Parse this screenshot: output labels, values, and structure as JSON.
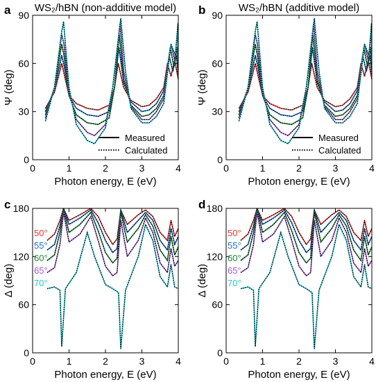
{
  "chart_data": [
    {
      "panel": "a",
      "type": "line",
      "title": "WS₂/hBN (non-additive model)",
      "xlabel": "Photon energy, E (eV)",
      "ylabel": "Ψ (deg)",
      "xlim": [
        0,
        4
      ],
      "ylim": [
        0,
        90
      ],
      "xticks": [
        0,
        1,
        2,
        3,
        4
      ],
      "yticks": [
        0,
        30,
        60,
        90
      ],
      "legend": {
        "placement": "bottom-right",
        "entries": [
          "Measured",
          "Calculated"
        ]
      },
      "series": [
        {
          "name": "50°",
          "color": "#e8352e",
          "x": [
            0.35,
            0.6,
            0.8,
            0.88,
            1.0,
            1.2,
            1.5,
            1.8,
            2.1,
            2.25,
            2.35,
            2.5,
            2.7,
            3.0,
            3.2,
            3.4,
            3.6,
            3.7,
            3.8,
            3.9,
            4.0
          ],
          "y": [
            32,
            42,
            60,
            52,
            40,
            35,
            32,
            31,
            34,
            45,
            60,
            45,
            37,
            33,
            34,
            38,
            45,
            60,
            52,
            62,
            50
          ]
        },
        {
          "name": "55°",
          "color": "#1f6fd1",
          "x": [
            0.35,
            0.6,
            0.8,
            0.87,
            1.0,
            1.2,
            1.5,
            1.8,
            2.1,
            2.25,
            2.37,
            2.5,
            2.7,
            3.0,
            3.2,
            3.4,
            3.6,
            3.75,
            3.85,
            3.95,
            4.0
          ],
          "y": [
            30,
            44,
            65,
            58,
            40,
            32,
            28,
            27,
            30,
            45,
            70,
            48,
            36,
            30,
            31,
            35,
            43,
            65,
            55,
            65,
            52
          ]
        },
        {
          "name": "60°",
          "color": "#1f8a3a",
          "x": [
            0.35,
            0.6,
            0.8,
            0.86,
            1.0,
            1.2,
            1.5,
            1.8,
            2.1,
            2.25,
            2.38,
            2.5,
            2.7,
            3.0,
            3.2,
            3.4,
            3.6,
            3.78,
            3.88,
            3.97,
            4.0
          ],
          "y": [
            28,
            45,
            72,
            65,
            40,
            28,
            23,
            22,
            26,
            45,
            78,
            50,
            34,
            27,
            28,
            32,
            40,
            70,
            58,
            70,
            55
          ]
        },
        {
          "name": "65°",
          "color": "#a05ad8",
          "x": [
            0.35,
            0.6,
            0.8,
            0.86,
            1.0,
            1.2,
            1.5,
            1.7,
            2.0,
            2.2,
            2.4,
            2.5,
            2.7,
            3.0,
            3.2,
            3.4,
            3.6,
            3.8,
            3.9,
            3.98,
            4.0
          ],
          "y": [
            26,
            45,
            78,
            72,
            42,
            25,
            17,
            15,
            22,
            45,
            85,
            55,
            33,
            25,
            25,
            30,
            38,
            72,
            62,
            80,
            60
          ]
        },
        {
          "name": "70°",
          "color": "#22c6cf",
          "x": [
            0.35,
            0.6,
            0.8,
            0.85,
            1.0,
            1.2,
            1.5,
            1.7,
            2.0,
            2.2,
            2.42,
            2.55,
            2.7,
            3.0,
            3.2,
            3.4,
            3.6,
            3.8,
            3.92,
            3.99,
            4.0
          ],
          "y": [
            24,
            45,
            80,
            86,
            45,
            22,
            12,
            10,
            20,
            45,
            88,
            55,
            32,
            23,
            23,
            27,
            35,
            72,
            65,
            85,
            62
          ]
        }
      ]
    },
    {
      "panel": "b",
      "type": "line",
      "title": "WS₂/hBN (additive model)",
      "xlabel": "Photon energy, E (eV)",
      "ylabel": "Ψ (deg)",
      "xlim": [
        0,
        4
      ],
      "ylim": [
        0,
        90
      ],
      "xticks": [
        0,
        1,
        2,
        3,
        4
      ],
      "yticks": [
        0,
        30,
        60,
        90
      ],
      "legend": {
        "placement": "bottom-right",
        "entries": [
          "Measured",
          "Calculated"
        ]
      },
      "series": [
        {
          "name": "50°",
          "color": "#e8352e",
          "x": [
            0.35,
            0.6,
            0.8,
            0.88,
            1.0,
            1.2,
            1.5,
            1.8,
            2.1,
            2.25,
            2.35,
            2.5,
            2.7,
            3.0,
            3.2,
            3.4,
            3.6,
            3.7,
            3.8,
            3.9,
            4.0
          ],
          "y": [
            32,
            42,
            60,
            52,
            40,
            35,
            32,
            31,
            34,
            45,
            60,
            45,
            37,
            33,
            34,
            38,
            45,
            60,
            52,
            62,
            50
          ]
        },
        {
          "name": "55°",
          "color": "#1f6fd1",
          "x": [
            0.35,
            0.6,
            0.8,
            0.87,
            1.0,
            1.2,
            1.5,
            1.8,
            2.1,
            2.25,
            2.37,
            2.5,
            2.7,
            3.0,
            3.2,
            3.4,
            3.6,
            3.75,
            3.85,
            3.95,
            4.0
          ],
          "y": [
            30,
            44,
            65,
            58,
            40,
            32,
            28,
            27,
            30,
            45,
            70,
            48,
            36,
            30,
            31,
            35,
            43,
            65,
            55,
            65,
            52
          ]
        },
        {
          "name": "60°",
          "color": "#1f8a3a",
          "x": [
            0.35,
            0.6,
            0.8,
            0.86,
            1.0,
            1.2,
            1.5,
            1.8,
            2.1,
            2.25,
            2.38,
            2.5,
            2.7,
            3.0,
            3.2,
            3.4,
            3.6,
            3.78,
            3.88,
            3.97,
            4.0
          ],
          "y": [
            28,
            45,
            72,
            65,
            40,
            28,
            23,
            22,
            26,
            45,
            78,
            50,
            34,
            27,
            28,
            32,
            40,
            70,
            58,
            70,
            55
          ]
        },
        {
          "name": "65°",
          "color": "#a05ad8",
          "x": [
            0.35,
            0.6,
            0.8,
            0.86,
            1.0,
            1.2,
            1.5,
            1.7,
            2.0,
            2.2,
            2.4,
            2.5,
            2.7,
            3.0,
            3.2,
            3.4,
            3.6,
            3.8,
            3.9,
            3.98,
            4.0
          ],
          "y": [
            26,
            45,
            78,
            72,
            42,
            25,
            17,
            15,
            22,
            45,
            85,
            55,
            33,
            25,
            25,
            30,
            38,
            72,
            62,
            80,
            60
          ]
        },
        {
          "name": "70°",
          "color": "#22c6cf",
          "x": [
            0.35,
            0.6,
            0.8,
            0.85,
            1.0,
            1.2,
            1.5,
            1.7,
            2.0,
            2.2,
            2.42,
            2.55,
            2.7,
            3.0,
            3.2,
            3.4,
            3.6,
            3.8,
            3.92,
            3.99,
            4.0
          ],
          "y": [
            24,
            45,
            80,
            86,
            45,
            22,
            12,
            10,
            20,
            45,
            88,
            55,
            32,
            23,
            23,
            27,
            35,
            72,
            65,
            85,
            62
          ]
        }
      ]
    },
    {
      "panel": "c",
      "type": "line",
      "title": "",
      "xlabel": "Photon energy, E (eV)",
      "ylabel": "Δ (deg)",
      "xlim": [
        0,
        4
      ],
      "ylim": [
        0,
        180
      ],
      "xticks": [
        0,
        1,
        2,
        3,
        4
      ],
      "yticks": [
        0,
        60,
        120,
        180
      ],
      "series": [
        {
          "name": "50°",
          "color": "#e8352e",
          "x": [
            0.4,
            0.6,
            0.75,
            0.85,
            1.0,
            1.3,
            1.6,
            1.8,
            2.0,
            2.2,
            2.32,
            2.42,
            2.6,
            2.9,
            3.1,
            3.3,
            3.5,
            3.7,
            3.8,
            3.9,
            4.0
          ],
          "y": [
            140,
            148,
            165,
            180,
            165,
            172,
            180,
            170,
            150,
            135,
            142,
            178,
            160,
            172,
            178,
            170,
            150,
            140,
            165,
            145,
            155
          ]
        },
        {
          "name": "55°",
          "color": "#1f6fd1",
          "x": [
            0.4,
            0.6,
            0.75,
            0.85,
            1.0,
            1.3,
            1.6,
            1.8,
            2.0,
            2.2,
            2.32,
            2.42,
            2.6,
            2.9,
            3.1,
            3.3,
            3.5,
            3.7,
            3.8,
            3.9,
            4.0
          ],
          "y": [
            128,
            135,
            158,
            180,
            160,
            168,
            178,
            162,
            140,
            125,
            130,
            178,
            150,
            165,
            175,
            165,
            140,
            128,
            155,
            135,
            145
          ]
        },
        {
          "name": "60°",
          "color": "#1f8a3a",
          "x": [
            0.4,
            0.6,
            0.75,
            0.85,
            1.0,
            1.3,
            1.6,
            1.8,
            2.0,
            2.2,
            2.32,
            2.42,
            2.6,
            2.9,
            3.1,
            3.3,
            3.5,
            3.7,
            3.8,
            3.9,
            4.0
          ],
          "y": [
            115,
            122,
            150,
            180,
            150,
            160,
            175,
            152,
            125,
            112,
            118,
            175,
            138,
            155,
            172,
            158,
            128,
            115,
            145,
            122,
            132
          ]
        },
        {
          "name": "65°",
          "color": "#a05ad8",
          "x": [
            0.4,
            0.6,
            0.75,
            0.85,
            1.0,
            1.3,
            1.6,
            1.8,
            2.0,
            2.2,
            2.32,
            2.42,
            2.6,
            2.9,
            3.1,
            3.3,
            3.5,
            3.7,
            3.8,
            3.9,
            4.0
          ],
          "y": [
            100,
            106,
            135,
            175,
            138,
            148,
            170,
            140,
            108,
            96,
            100,
            165,
            120,
            140,
            168,
            150,
            112,
            100,
            130,
            108,
            115
          ]
        },
        {
          "name": "70°",
          "color": "#22c6cf",
          "x": [
            0.4,
            0.6,
            0.75,
            0.8,
            0.9,
            1.2,
            1.5,
            1.7,
            2.0,
            2.2,
            2.36,
            2.42,
            2.55,
            2.9,
            3.1,
            3.3,
            3.5,
            3.7,
            3.8,
            3.9,
            4.0
          ],
          "y": [
            80,
            82,
            78,
            8,
            80,
            100,
            150,
            120,
            85,
            80,
            75,
            5,
            78,
            120,
            160,
            140,
            95,
            82,
            110,
            82,
            80
          ]
        }
      ]
    },
    {
      "panel": "d",
      "type": "line",
      "title": "",
      "xlabel": "Photon energy, E (eV)",
      "ylabel": "Δ (deg)",
      "xlim": [
        0,
        4
      ],
      "ylim": [
        0,
        180
      ],
      "xticks": [
        0,
        1,
        2,
        3,
        4
      ],
      "yticks": [
        0,
        60,
        120,
        180
      ],
      "series": [
        {
          "name": "50°",
          "color": "#e8352e",
          "x": [
            0.4,
            0.6,
            0.75,
            0.85,
            1.0,
            1.3,
            1.6,
            1.8,
            2.0,
            2.2,
            2.32,
            2.42,
            2.6,
            2.9,
            3.1,
            3.3,
            3.5,
            3.7,
            3.8,
            3.9,
            4.0
          ],
          "y": [
            140,
            148,
            165,
            180,
            165,
            172,
            180,
            170,
            150,
            135,
            142,
            178,
            160,
            172,
            178,
            170,
            150,
            140,
            165,
            145,
            155
          ]
        },
        {
          "name": "55°",
          "color": "#1f6fd1",
          "x": [
            0.4,
            0.6,
            0.75,
            0.85,
            1.0,
            1.3,
            1.6,
            1.8,
            2.0,
            2.2,
            2.32,
            2.42,
            2.6,
            2.9,
            3.1,
            3.3,
            3.5,
            3.7,
            3.8,
            3.9,
            4.0
          ],
          "y": [
            128,
            135,
            158,
            180,
            160,
            168,
            178,
            162,
            140,
            125,
            130,
            178,
            150,
            165,
            175,
            165,
            140,
            128,
            155,
            135,
            145
          ]
        },
        {
          "name": "60°",
          "color": "#1f8a3a",
          "x": [
            0.4,
            0.6,
            0.75,
            0.85,
            1.0,
            1.3,
            1.6,
            1.8,
            2.0,
            2.2,
            2.32,
            2.42,
            2.6,
            2.9,
            3.1,
            3.3,
            3.5,
            3.7,
            3.8,
            3.9,
            4.0
          ],
          "y": [
            115,
            122,
            150,
            180,
            150,
            160,
            175,
            152,
            125,
            112,
            118,
            175,
            138,
            155,
            172,
            158,
            128,
            115,
            145,
            122,
            132
          ]
        },
        {
          "name": "65°",
          "color": "#a05ad8",
          "x": [
            0.4,
            0.6,
            0.75,
            0.85,
            1.0,
            1.3,
            1.6,
            1.8,
            2.0,
            2.2,
            2.32,
            2.42,
            2.6,
            2.9,
            3.1,
            3.3,
            3.5,
            3.7,
            3.8,
            3.9,
            4.0
          ],
          "y": [
            100,
            106,
            135,
            175,
            138,
            148,
            170,
            140,
            108,
            96,
            100,
            165,
            120,
            140,
            168,
            150,
            112,
            100,
            130,
            108,
            115
          ]
        },
        {
          "name": "70°",
          "color": "#22c6cf",
          "x": [
            0.4,
            0.6,
            0.75,
            0.8,
            0.9,
            1.2,
            1.5,
            1.7,
            2.0,
            2.2,
            2.36,
            2.42,
            2.55,
            2.9,
            3.1,
            3.3,
            3.5,
            3.7,
            3.8,
            3.9,
            4.0
          ],
          "y": [
            80,
            82,
            78,
            8,
            80,
            100,
            150,
            120,
            85,
            80,
            75,
            5,
            78,
            120,
            160,
            140,
            95,
            82,
            110,
            82,
            80
          ]
        }
      ]
    }
  ]
}
